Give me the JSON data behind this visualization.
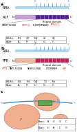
{
  "panel_a_label": "a",
  "panel_b_label": "b",
  "panel_c_label": "c",
  "rna_label": "RNA",
  "puf_label": "PUF",
  "ppr_label": "PPR",
  "five_prime": "5'",
  "three_prime": "3'",
  "repeat_domain": "Repeat domain",
  "n_label": "N",
  "c_label": "C",
  "puf_table_headers": [
    "R3,R4,:",
    "SQ",
    "CQ",
    "NQ",
    "SE",
    "SR"
  ],
  "puf_table_bases": [
    "Base:",
    "A",
    "R",
    "U",
    "G",
    "C"
  ],
  "ppr_table_headers": [
    "R3,R4,:",
    "SN",
    "TN",
    "ND",
    "TD",
    "NS"
  ],
  "ppr_table_bases": [
    "Base:",
    "A",
    "R",
    "U",
    "G",
    "C"
  ],
  "c_table_row1": [
    "Base:",
    "A",
    "U",
    "G",
    "C"
  ],
  "c_table_row2": [
    "Base:",
    "U",
    "A",
    "C",
    "G"
  ],
  "puf_bar_left_color": "#c8a0d8",
  "puf_bar_right_color": "#5520a0",
  "ppr_bar_left_color": "#f0b898",
  "ppr_bar_right_color": "#d01858",
  "rna_bar_color": "#a8d8f8",
  "background": "#ffffff",
  "text_color": "#000000",
  "highlight_red": "#e03020",
  "blob_color": "#f0b090",
  "blob_edge": "#c08060",
  "rna_line_color": "#4090d0",
  "green_rect_color": "#40a848",
  "gray_line": "#888888",
  "tick_color": "#5090c0"
}
